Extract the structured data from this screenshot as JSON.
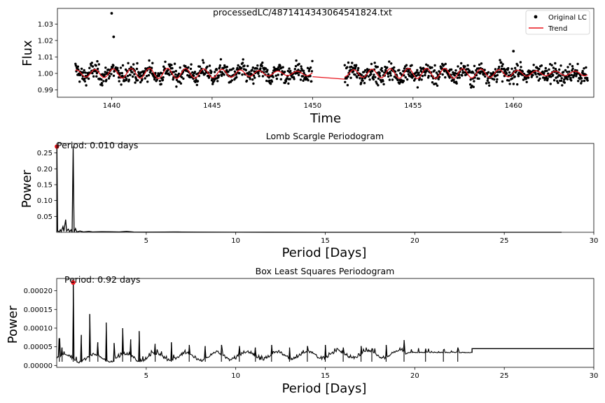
{
  "figure_title": "processedLC/4871414343064541824.txt",
  "chart_data": [
    {
      "type": "scatter",
      "title": "processedLC/4871414343064541824.txt",
      "xlabel": "Time",
      "ylabel": "Flux",
      "xlim": [
        1437.3,
        1464.0
      ],
      "ylim": [
        0.9855,
        1.0395
      ],
      "xticks": [
        1440,
        1445,
        1450,
        1455,
        1460
      ],
      "yticks": [
        0.99,
        1.0,
        1.01,
        1.02,
        1.03
      ],
      "ytick_labels": [
        "0.99",
        "1.00",
        "1.01",
        "1.02",
        "1.03"
      ],
      "legend": {
        "position": "top-right",
        "entries": [
          "Original LC",
          "Trend"
        ]
      },
      "series": [
        {
          "name": "Original LC",
          "kind": "points",
          "color": "#000000",
          "segments": [
            [
              1438.2,
              1450.0
            ],
            [
              1451.6,
              1463.7
            ]
          ],
          "mean": 1.0,
          "scatter_sd": 0.0045,
          "outliers": [
            [
              1440.0,
              1.0365
            ],
            [
              1440.1,
              1.0222
            ],
            [
              1460.0,
              1.0135
            ]
          ]
        },
        {
          "name": "Trend",
          "kind": "line",
          "color": "#e8141c",
          "segments": [
            [
              1438.2,
              1450.0
            ],
            [
              1451.6,
              1463.7
            ]
          ],
          "mean": 1.0,
          "amplitude": 0.0022,
          "period_days": 0.92,
          "gap_bridge": [
            [
              1450.0,
              0.998
            ],
            [
              1451.6,
              0.9965
            ]
          ]
        }
      ]
    },
    {
      "type": "line",
      "title": "Lomb Scargle Periodogram",
      "xlabel": "Period [Days]",
      "ylabel": "Power",
      "xlim": [
        0,
        30
      ],
      "ylim": [
        0,
        0.28
      ],
      "xticks": [
        5,
        10,
        15,
        20,
        25,
        30
      ],
      "yticks": [
        0.05,
        0.1,
        0.15,
        0.2,
        0.25
      ],
      "ytick_labels": [
        "0.05",
        "0.10",
        "0.15",
        "0.20",
        "0.25"
      ],
      "annotation": "Period: 0.010 days",
      "peak": {
        "x": 0.01,
        "y": 0.27,
        "marker_color": "#e8141c"
      },
      "line_color": "#000000",
      "x_end": 28.2,
      "points": [
        [
          0.01,
          0.0
        ],
        [
          0.01,
          0.27
        ],
        [
          0.05,
          0.004
        ],
        [
          0.15,
          0.002
        ],
        [
          0.2,
          0.008
        ],
        [
          0.25,
          0.002
        ],
        [
          0.35,
          0.018
        ],
        [
          0.4,
          0.003
        ],
        [
          0.5,
          0.04
        ],
        [
          0.55,
          0.004
        ],
        [
          0.65,
          0.01
        ],
        [
          0.72,
          0.002
        ],
        [
          0.8,
          0.008
        ],
        [
          0.86,
          0.0
        ],
        [
          0.92,
          0.27
        ],
        [
          0.97,
          0.0
        ],
        [
          1.05,
          0.012
        ],
        [
          1.12,
          0.001
        ],
        [
          1.3,
          0.004
        ],
        [
          1.5,
          0.001
        ],
        [
          1.8,
          0.003
        ],
        [
          2.0,
          0.001
        ],
        [
          2.5,
          0.002
        ],
        [
          3.0,
          0.0015
        ],
        [
          3.5,
          0.001
        ],
        [
          3.9,
          0.003
        ],
        [
          4.3,
          0.0008
        ],
        [
          5.0,
          0.0005
        ],
        [
          6.0,
          0.0008
        ],
        [
          6.5,
          0.0012
        ],
        [
          7.0,
          0.0008
        ],
        [
          8.0,
          0.0004
        ],
        [
          10.0,
          0.0002
        ],
        [
          15.0,
          0.0001
        ],
        [
          20.0,
          0.0
        ],
        [
          28.2,
          0.0
        ]
      ]
    },
    {
      "type": "line",
      "title": "Box Least Squares Periodogram",
      "xlabel": "Period [Days]",
      "ylabel": "Power",
      "xlim": [
        0,
        30
      ],
      "ylim": [
        -5e-06,
        0.000233
      ],
      "xticks": [
        5,
        10,
        15,
        20,
        25,
        30
      ],
      "yticks": [
        0.0,
        5e-05,
        0.0001,
        0.00015,
        0.0002
      ],
      "ytick_labels": [
        "0.00000",
        "0.00005",
        "0.00010",
        "0.00015",
        "0.00020"
      ],
      "annotation": "Period: 0.92 days",
      "peak": {
        "x": 0.92,
        "y": 0.000222,
        "marker_color": "#e8141c"
      },
      "line_color": "#000000",
      "baseline_after_19_6": 3.4e-05,
      "plateau": {
        "x_start": 23.2,
        "x_end": 30,
        "value": 4.5e-05
      },
      "spikes": [
        [
          0.15,
          7.2e-05
        ],
        [
          0.3,
          4.8e-05
        ],
        [
          0.92,
          0.000222
        ],
        [
          1.38,
          8.2e-05
        ],
        [
          1.84,
          0.000138
        ],
        [
          2.3,
          6.2e-05
        ],
        [
          2.76,
          0.000115
        ],
        [
          3.2,
          6e-05
        ],
        [
          3.68,
          0.0001
        ],
        [
          4.14,
          7e-05
        ],
        [
          4.6,
          9.2e-05
        ],
        [
          5.5,
          5.8e-05
        ],
        [
          6.4,
          6.2e-05
        ],
        [
          7.4,
          5.5e-05
        ],
        [
          8.3,
          5.2e-05
        ],
        [
          9.2,
          5.5e-05
        ],
        [
          10.2,
          5.2e-05
        ],
        [
          11.1,
          4.8e-05
        ],
        [
          12.0,
          5.5e-05
        ],
        [
          13.0,
          4.8e-05
        ],
        [
          14.0,
          5.2e-05
        ],
        [
          15.0,
          5.5e-05
        ],
        [
          16.0,
          4.8e-05
        ],
        [
          17.0,
          5.2e-05
        ],
        [
          17.6,
          4.5e-05
        ],
        [
          18.4,
          5.5e-05
        ],
        [
          19.4,
          6.8e-05
        ],
        [
          20.6,
          4.5e-05
        ],
        [
          21.6,
          4.2e-05
        ],
        [
          22.4,
          4.8e-05
        ]
      ]
    }
  ]
}
